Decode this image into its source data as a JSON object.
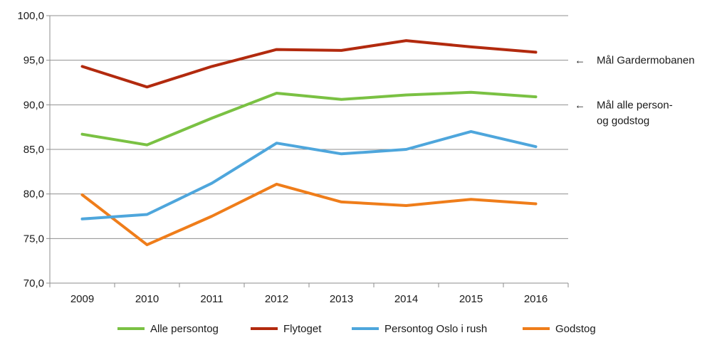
{
  "chart_data": {
    "type": "line",
    "title": "",
    "xlabel": "",
    "ylabel": "",
    "ylim": [
      70,
      100
    ],
    "yticks": [
      "70,0",
      "75,0",
      "80,0",
      "85,0",
      "90,0",
      "95,0",
      "100,0"
    ],
    "ytick_values": [
      70,
      75,
      80,
      85,
      90,
      95,
      100
    ],
    "categories": [
      "2009",
      "2010",
      "2011",
      "2012",
      "2013",
      "2014",
      "2015",
      "2016"
    ],
    "grid": true,
    "legend_position": "bottom",
    "series": [
      {
        "name": "Alle persontog",
        "color": "#7ac143",
        "values": [
          86.7,
          85.5,
          88.5,
          91.3,
          90.6,
          91.1,
          91.4,
          90.9
        ]
      },
      {
        "name": "Flytoget",
        "color": "#b22a0e",
        "values": [
          94.3,
          92.0,
          94.3,
          96.2,
          96.1,
          97.2,
          96.5,
          95.9
        ]
      },
      {
        "name": "Persontog Oslo i rush",
        "color": "#4ea6dc",
        "values": [
          77.2,
          77.7,
          81.2,
          85.7,
          84.5,
          85.0,
          87.0,
          85.3
        ]
      },
      {
        "name": "Godstog",
        "color": "#ef7d1a",
        "values": [
          79.9,
          74.3,
          77.5,
          81.1,
          79.1,
          78.7,
          79.4,
          78.9
        ]
      }
    ],
    "annotations": [
      {
        "arrow": "←",
        "lines": [
          "Mål Gardermobanen"
        ],
        "value": 95
      },
      {
        "arrow": "←",
        "lines": [
          "Mål alle person-",
          "og godstog"
        ],
        "value": 90
      }
    ]
  }
}
